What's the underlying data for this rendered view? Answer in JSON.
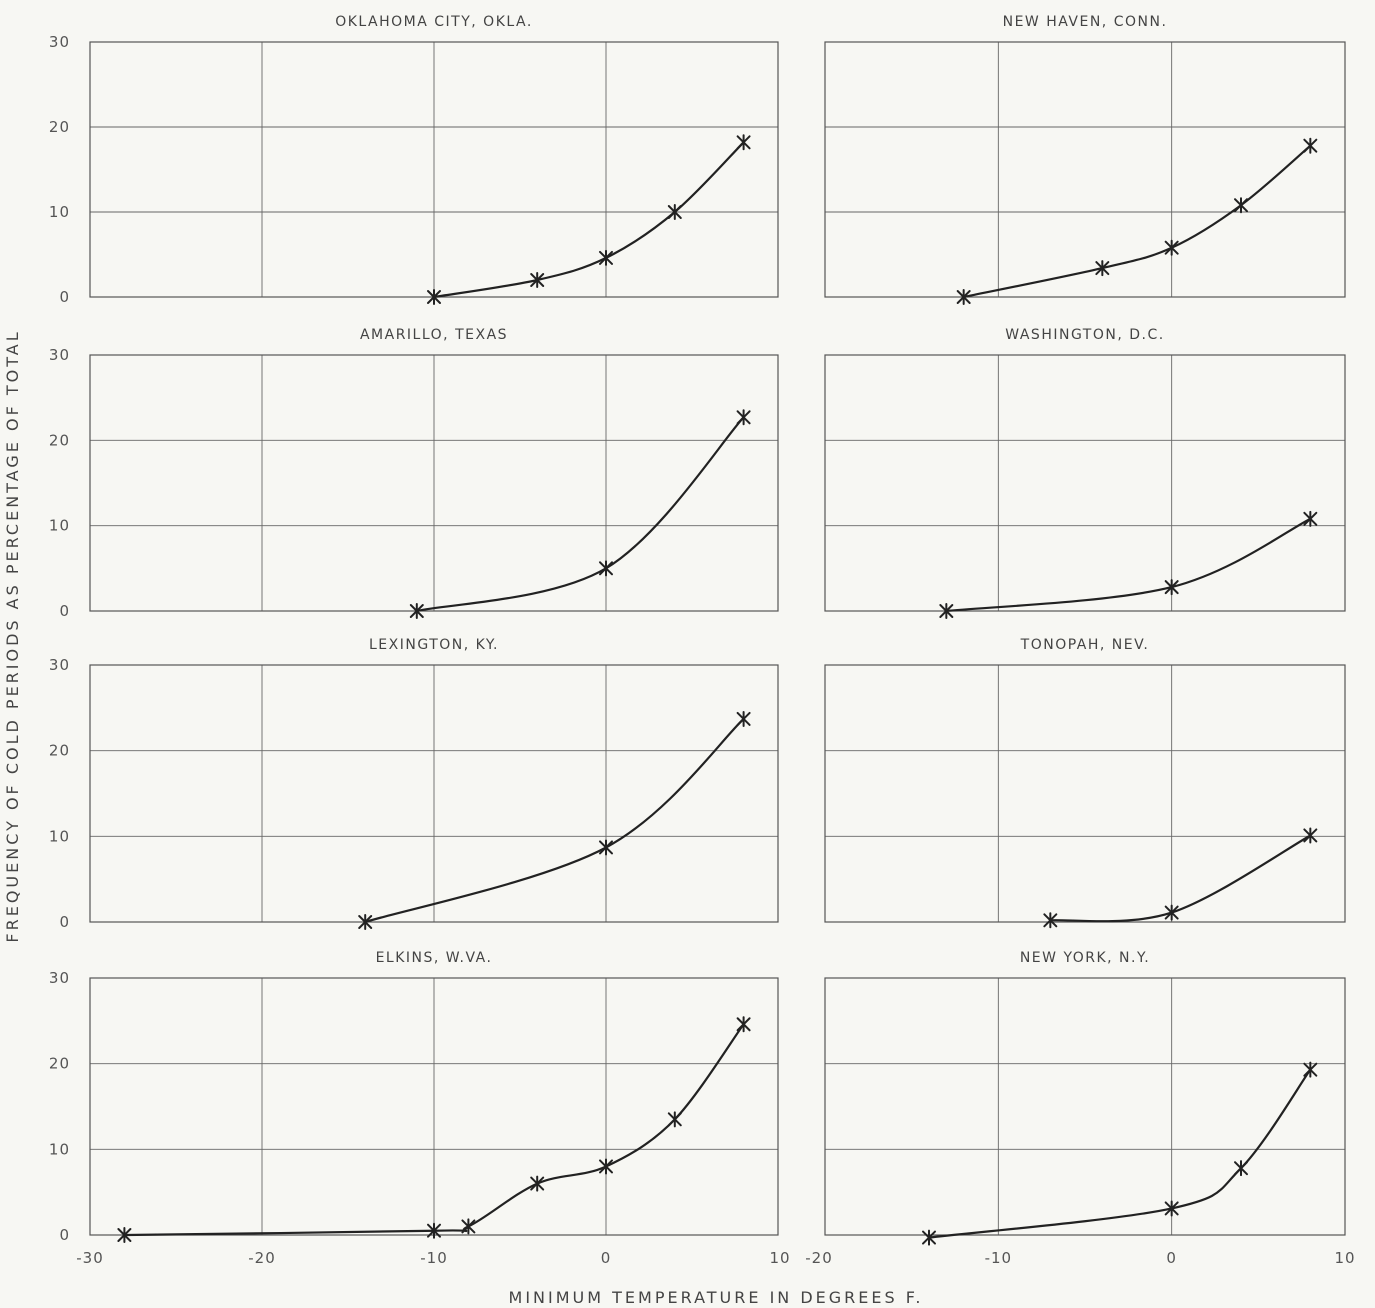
{
  "x_axis_label": "MINIMUM TEMPERATURE IN DEGREES F.",
  "y_axis_label": "FREQUENCY OF COLD PERIODS AS PERCENTAGE OF TOTAL",
  "colors": {
    "background": "#f7f7f3",
    "line": "#222222",
    "grid": "#666666"
  },
  "chart_data": [
    {
      "type": "line",
      "title": "OKLAHOMA CITY, OKLA.",
      "xlim": [
        -30,
        10
      ],
      "ylim": [
        0,
        30
      ],
      "xticks": [
        -30,
        -20,
        -10,
        0,
        10
      ],
      "yticks": [
        0,
        10,
        20,
        30
      ],
      "x": [
        -10,
        -4,
        0,
        4,
        8
      ],
      "y": [
        0,
        2,
        4.6,
        10,
        18.2
      ],
      "grid": true
    },
    {
      "type": "line",
      "title": "NEW HAVEN, CONN.",
      "xlim": [
        -20,
        10
      ],
      "ylim": [
        0,
        30
      ],
      "xticks": [
        -20,
        -10,
        0,
        10
      ],
      "yticks": [
        0,
        10,
        20,
        30
      ],
      "x": [
        -12,
        -4,
        0,
        4,
        8
      ],
      "y": [
        0,
        3.4,
        5.8,
        10.8,
        17.8
      ],
      "grid": true
    },
    {
      "type": "line",
      "title": "AMARILLO, TEXAS",
      "xlim": [
        -30,
        10
      ],
      "ylim": [
        0,
        30
      ],
      "xticks": [
        -30,
        -20,
        -10,
        0,
        10
      ],
      "yticks": [
        0,
        10,
        20,
        30
      ],
      "x": [
        -11,
        0,
        8
      ],
      "y": [
        0,
        5,
        22.7
      ],
      "grid": true
    },
    {
      "type": "line",
      "title": "WASHINGTON, D.C.",
      "xlim": [
        -20,
        10
      ],
      "ylim": [
        0,
        30
      ],
      "xticks": [
        -20,
        -10,
        0,
        10
      ],
      "yticks": [
        0,
        10,
        20,
        30
      ],
      "x": [
        -13,
        0,
        8
      ],
      "y": [
        0,
        2.8,
        10.8
      ],
      "grid": true
    },
    {
      "type": "line",
      "title": "LEXINGTON, KY.",
      "xlim": [
        -30,
        10
      ],
      "ylim": [
        0,
        30
      ],
      "xticks": [
        -30,
        -20,
        -10,
        0,
        10
      ],
      "yticks": [
        0,
        10,
        20,
        30
      ],
      "x": [
        -14,
        0,
        8
      ],
      "y": [
        0,
        8.7,
        23.7
      ],
      "grid": true
    },
    {
      "type": "line",
      "title": "TONOPAH, NEV.",
      "xlim": [
        -20,
        10
      ],
      "ylim": [
        0,
        30
      ],
      "xticks": [
        -20,
        -10,
        0,
        10
      ],
      "yticks": [
        0,
        10,
        20,
        30
      ],
      "x": [
        -7,
        0,
        8
      ],
      "y": [
        0.2,
        1.1,
        10.1
      ],
      "grid": true
    },
    {
      "type": "line",
      "title": "ELKINS, W.VA.",
      "xlim": [
        -30,
        10
      ],
      "ylim": [
        0,
        30
      ],
      "xticks": [
        -30,
        -20,
        -10,
        0,
        10
      ],
      "yticks": [
        0,
        10,
        20,
        30
      ],
      "x": [
        -28,
        -10,
        -8,
        -4,
        0,
        4,
        8
      ],
      "y": [
        0,
        0.5,
        1,
        6,
        8,
        13.5,
        24.6
      ],
      "grid": true
    },
    {
      "type": "line",
      "title": "NEW YORK, N.Y.",
      "xlim": [
        -20,
        10
      ],
      "ylim": [
        0,
        30
      ],
      "xticks": [
        -20,
        -10,
        0,
        10
      ],
      "yticks": [
        0,
        10,
        20,
        30
      ],
      "x": [
        -14,
        0,
        4,
        8
      ],
      "y": [
        -0.3,
        3.1,
        7.8,
        19.3
      ],
      "grid": true
    }
  ]
}
